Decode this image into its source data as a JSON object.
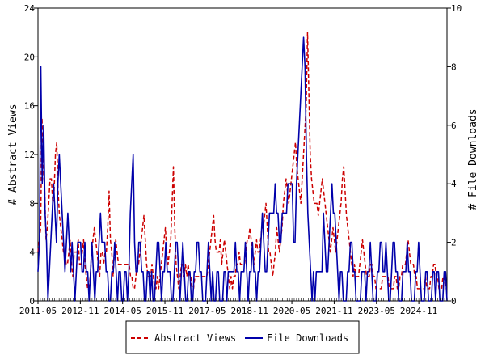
{
  "chart_data": {
    "type": "line",
    "x_axis": {
      "tick_labels": [
        "2011-05",
        "2012-11",
        "2014-05",
        "2015-11",
        "2017-05",
        "2018-11",
        "2020-05",
        "2021-11",
        "2023-05",
        "2024-11"
      ],
      "range": [
        "2011-05",
        "2025-11"
      ]
    },
    "y_left": {
      "label": "# Abstract Views",
      "min": 0,
      "max": 24,
      "ticks": [
        0,
        4,
        8,
        12,
        16,
        20,
        24
      ]
    },
    "y_right": {
      "label": "# File Downloads",
      "min": 0,
      "max": 10,
      "ticks": [
        0,
        2,
        4,
        6,
        8,
        10
      ]
    },
    "grid": false,
    "legend_position": "bottom-center",
    "series": [
      {
        "name": "Abstract Views",
        "axis": "left",
        "color": "#cc0000",
        "style": "dashed",
        "values": [
          4,
          5,
          6,
          15,
          11,
          9,
          5,
          6,
          8,
          10,
          10,
          8,
          9,
          12,
          13,
          9,
          7,
          6,
          5,
          4,
          4,
          3,
          3,
          4,
          5,
          3,
          2,
          4,
          4,
          4,
          5,
          3,
          3,
          4,
          5,
          3,
          2,
          1,
          1,
          2,
          4,
          5,
          6,
          5,
          4,
          3,
          2,
          4,
          4,
          3,
          4,
          4,
          6,
          9,
          5,
          4,
          2,
          4,
          5,
          4,
          3,
          3,
          3,
          3,
          3,
          3,
          3,
          3,
          3,
          2,
          2,
          1,
          1,
          2,
          3,
          3,
          4,
          5,
          6,
          7,
          5,
          3,
          2,
          2,
          2,
          3,
          2,
          1,
          1,
          2,
          1,
          2,
          3,
          4,
          5,
          6,
          4,
          3,
          4,
          5,
          8,
          11,
          6,
          3,
          2,
          1,
          2,
          3,
          3,
          2,
          3,
          2,
          3,
          2,
          2,
          1,
          1,
          2,
          2,
          2,
          2,
          2,
          2,
          2,
          2,
          2,
          2,
          3,
          4,
          5,
          6,
          7,
          5,
          4,
          4,
          4,
          5,
          3,
          4,
          5,
          4,
          3,
          2,
          1,
          2,
          1,
          2,
          2,
          3,
          3,
          4,
          3,
          3,
          3,
          3,
          4,
          5,
          5,
          6,
          5,
          4,
          3,
          4,
          5,
          4,
          4,
          5,
          6,
          6,
          7,
          8,
          6,
          4,
          4,
          3,
          2,
          3,
          4,
          6,
          5,
          4,
          5,
          6,
          8,
          9,
          10,
          9,
          8,
          9,
          10,
          11,
          12,
          13,
          11,
          10,
          9,
          8,
          10,
          12,
          14,
          16,
          22,
          17,
          12,
          10,
          9,
          8,
          8,
          8,
          7,
          8,
          9,
          10,
          9,
          8,
          7,
          6,
          5,
          4,
          5,
          6,
          5,
          4,
          5,
          6,
          7,
          8,
          10,
          11,
          9,
          7,
          6,
          5,
          4,
          3,
          2,
          3,
          2,
          2,
          2,
          3,
          4,
          5,
          4,
          3,
          2,
          2,
          2,
          3,
          3,
          2,
          2,
          1,
          1,
          1,
          1,
          1,
          2,
          2,
          2,
          2,
          2,
          1,
          1,
          1,
          1,
          2,
          2,
          1,
          1,
          2,
          2,
          3,
          3,
          3,
          4,
          5,
          4,
          3,
          3,
          3,
          2,
          2,
          1,
          1,
          1,
          1,
          1,
          1,
          2,
          1,
          1,
          1,
          2,
          2,
          3,
          3,
          2,
          2,
          1,
          1,
          1,
          2,
          2,
          1,
          1
        ]
      },
      {
        "name": "File Downloads",
        "axis": "right",
        "color": "#0000aa",
        "style": "solid",
        "values": [
          1,
          2,
          8,
          4,
          6,
          3,
          2,
          0,
          1,
          2,
          3,
          4,
          3,
          2,
          4,
          5,
          4,
          3,
          2,
          1,
          2,
          3,
          2,
          1,
          2,
          1,
          0,
          1,
          2,
          2,
          2,
          1,
          1,
          2,
          1,
          1,
          0,
          1,
          2,
          1,
          0,
          1,
          1,
          2,
          3,
          2,
          2,
          2,
          1,
          1,
          0,
          0,
          1,
          1,
          2,
          1,
          0,
          1,
          1,
          0,
          0,
          1,
          1,
          0,
          1,
          3,
          4,
          5,
          2,
          1,
          1,
          2,
          2,
          1,
          1,
          0,
          0,
          1,
          1,
          0,
          1,
          0,
          0,
          1,
          2,
          2,
          1,
          0,
          1,
          1,
          2,
          1,
          1,
          1,
          0,
          0,
          1,
          2,
          2,
          1,
          0,
          1,
          2,
          1,
          0,
          0,
          1,
          1,
          0,
          0,
          1,
          1,
          2,
          2,
          1,
          1,
          0,
          0,
          0,
          1,
          2,
          1,
          0,
          1,
          0,
          0,
          1,
          1,
          0,
          0,
          0,
          1,
          1,
          0,
          1,
          1,
          1,
          1,
          1,
          2,
          1,
          1,
          0,
          1,
          1,
          1,
          2,
          1,
          0,
          1,
          1,
          2,
          1,
          1,
          0,
          1,
          1,
          2,
          3,
          2,
          1,
          1,
          2,
          3,
          3,
          3,
          3,
          4,
          3,
          3,
          2,
          2,
          3,
          3,
          3,
          3,
          4,
          4,
          4,
          4,
          2,
          2,
          4,
          5,
          6,
          7,
          8,
          9,
          8,
          5,
          3,
          2,
          1,
          0,
          1,
          0,
          1,
          1,
          1,
          1,
          1,
          3,
          2,
          1,
          1,
          2,
          3,
          4,
          3,
          3,
          2,
          1,
          0,
          1,
          1,
          0,
          0,
          0,
          1,
          1,
          2,
          2,
          1,
          1,
          0,
          0,
          0,
          0,
          1,
          1,
          1,
          0,
          1,
          1,
          2,
          1,
          0,
          0,
          0,
          1,
          1,
          2,
          2,
          1,
          1,
          2,
          1,
          0,
          0,
          1,
          2,
          2,
          1,
          1,
          0,
          0,
          0,
          1,
          1,
          1,
          2,
          1,
          1,
          0,
          0,
          0,
          1,
          1,
          2,
          1,
          0,
          0,
          0,
          1,
          1,
          0,
          0,
          0,
          1,
          1,
          0,
          1,
          1,
          0,
          0,
          0,
          1,
          1,
          0
        ]
      }
    ]
  }
}
